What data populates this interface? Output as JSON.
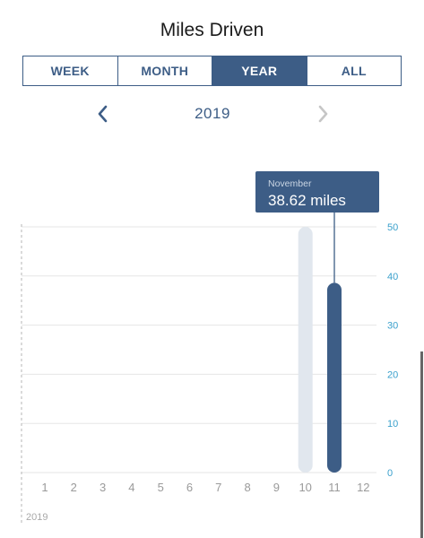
{
  "page": {
    "title": "Miles Driven"
  },
  "period_tabs": [
    {
      "label": "WEEK",
      "active": false
    },
    {
      "label": "MONTH",
      "active": false
    },
    {
      "label": "YEAR",
      "active": true
    },
    {
      "label": "ALL",
      "active": false
    }
  ],
  "year_nav": {
    "label": "2019",
    "prev_icon": "chevron-left-icon",
    "next_icon": "chevron-right-icon",
    "next_enabled": false
  },
  "colors": {
    "accent": "#3d5d86",
    "bar_selected": "#3d5d86",
    "bar_inactive": "#e1e7ee",
    "tick_right": "#3aa0cc",
    "tick_bottom": "#9a9a9a",
    "grid": "#e6e6e6"
  },
  "chart_data": {
    "type": "bar",
    "categories": [
      "1",
      "2",
      "3",
      "4",
      "5",
      "6",
      "7",
      "8",
      "9",
      "10",
      "11",
      "12"
    ],
    "values": [
      0,
      0,
      0,
      0,
      0,
      0,
      0,
      0,
      0,
      50,
      38.62,
      0
    ],
    "ylim": [
      0,
      50
    ],
    "yticks": [
      "0",
      "10",
      "20",
      "30",
      "40",
      "50"
    ],
    "y_axis_side": "right",
    "grid": true,
    "x_group_label": "2019",
    "selected_index": 10,
    "tooltip": {
      "month": "November",
      "value": "38.62 miles"
    }
  }
}
